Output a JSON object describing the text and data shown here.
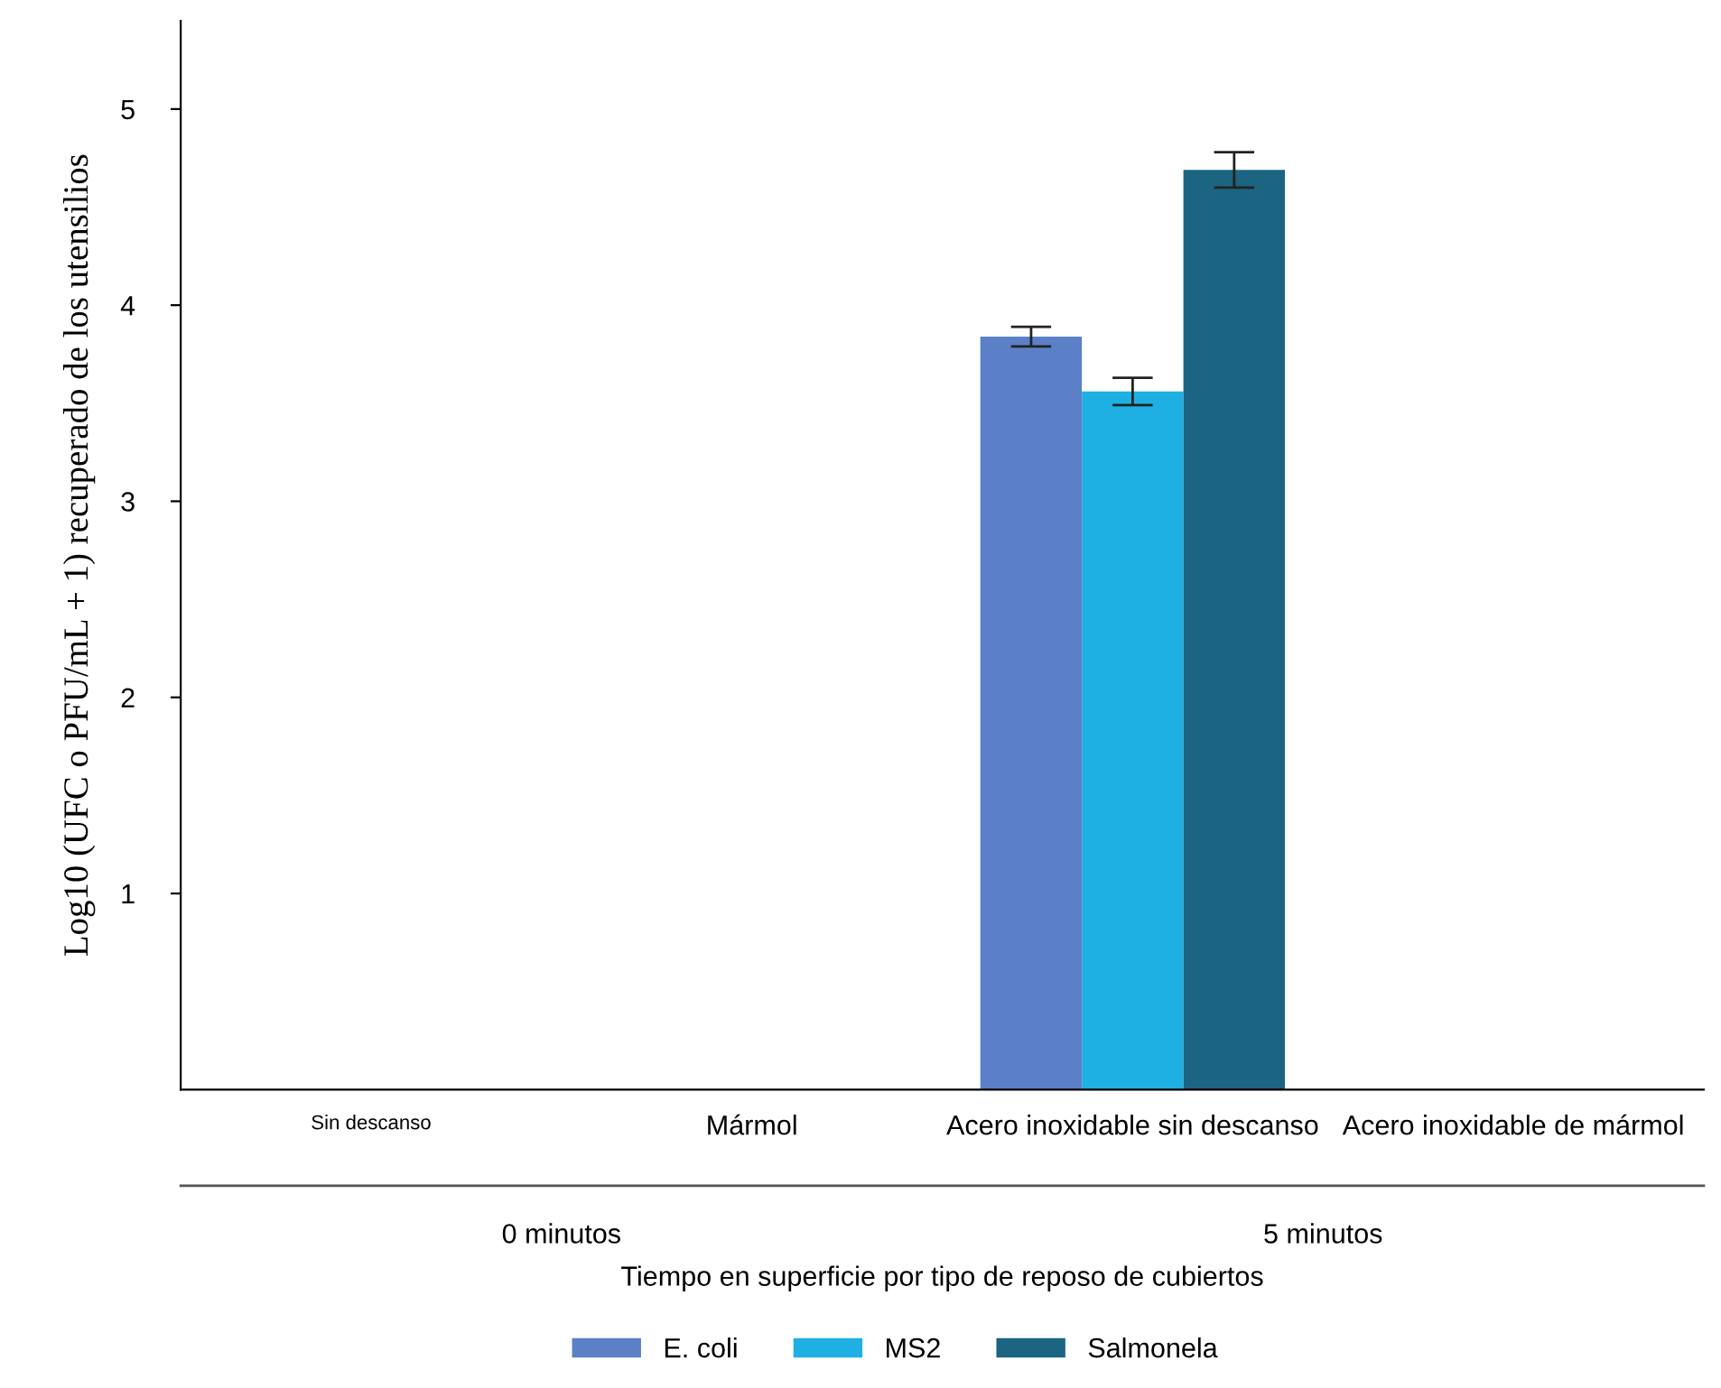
{
  "chart_data": {
    "type": "bar",
    "categories": [
      "Sin descanso",
      "Mármol",
      "Acero inoxidable sin descanso",
      "Acero inoxidable de mármol"
    ],
    "series": [
      {
        "name": "E. coli",
        "color": "#5b80c8",
        "values": [
          null,
          null,
          3.84,
          null
        ],
        "errors": [
          null,
          null,
          0.05,
          null
        ]
      },
      {
        "name": "MS2",
        "color": "#1fb0e3",
        "values": [
          null,
          null,
          3.56,
          null
        ],
        "errors": [
          null,
          null,
          0.07,
          null
        ]
      },
      {
        "name": "Salmonela",
        "color": "#1b6482",
        "values": [
          null,
          null,
          4.69,
          null
        ],
        "errors": [
          null,
          null,
          0.09,
          null
        ]
      }
    ],
    "xlabel": "Tiempo en superficie por tipo de reposo de cubiertos",
    "ylabel": "Log10 (UFC o PFU/mL + 1) recuperado de los utensilios",
    "annotations": [
      "0 minutos",
      "5 minutos"
    ],
    "ylim": [
      0,
      5.45
    ],
    "yticks": [
      1,
      2,
      3,
      4,
      5
    ],
    "grid": false,
    "legend": "bottom"
  }
}
